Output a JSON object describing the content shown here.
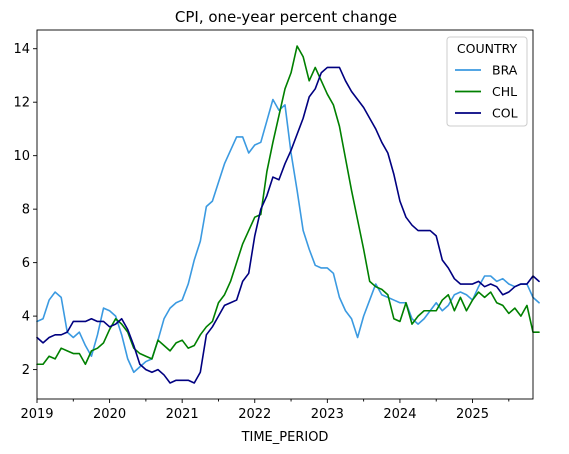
{
  "chart_data": {
    "type": "line",
    "title": "CPI, one-year percent change",
    "xlabel": "TIME_PERIOD",
    "ylabel": "",
    "xlim": [
      "2019-01",
      "2025-11"
    ],
    "ylim": [
      0.9,
      14.7
    ],
    "xticks": [
      {
        "label": "2019",
        "date": "2019-01"
      },
      {
        "label": "2020",
        "date": "2020-01"
      },
      {
        "label": "2021",
        "date": "2021-01"
      },
      {
        "label": "2022",
        "date": "2022-01"
      },
      {
        "label": "2023",
        "date": "2023-01"
      },
      {
        "label": "2024",
        "date": "2024-01"
      },
      {
        "label": "2025",
        "date": "2025-01"
      }
    ],
    "yticks": [
      2,
      4,
      6,
      8,
      10,
      12,
      14
    ],
    "grid": false,
    "legend": {
      "title": "COUNTRY",
      "placement": "top-right"
    },
    "x_start": "2019-01",
    "frequency": "monthly",
    "series": [
      {
        "name": "BRA",
        "color": "#3b9ae1",
        "values": [
          3.8,
          3.9,
          4.6,
          4.9,
          4.7,
          3.4,
          3.2,
          3.4,
          2.9,
          2.5,
          3.3,
          4.3,
          4.2,
          4.0,
          3.3,
          2.4,
          1.9,
          2.1,
          2.3,
          2.4,
          3.1,
          3.9,
          4.3,
          4.5,
          4.6,
          5.2,
          6.1,
          6.8,
          8.1,
          8.3,
          9.0,
          9.7,
          10.2,
          10.7,
          10.7,
          10.1,
          10.4,
          10.5,
          11.3,
          12.1,
          11.7,
          11.9,
          10.1,
          8.7,
          7.2,
          6.5,
          5.9,
          5.8,
          5.8,
          5.6,
          4.7,
          4.2,
          3.9,
          3.2,
          4.0,
          4.6,
          5.2,
          4.8,
          4.7,
          4.6,
          4.5,
          4.5,
          3.9,
          3.7,
          3.9,
          4.2,
          4.5,
          4.2,
          4.4,
          4.8,
          4.9,
          4.8,
          4.6,
          5.1,
          5.5,
          5.5,
          5.3,
          5.4,
          5.2,
          5.1,
          5.2,
          5.2,
          4.7,
          4.5
        ]
      },
      {
        "name": "CHL",
        "color": "#008000",
        "values": [
          2.2,
          2.2,
          2.5,
          2.4,
          2.8,
          2.7,
          2.6,
          2.6,
          2.2,
          2.7,
          2.8,
          3.0,
          3.5,
          3.9,
          3.7,
          3.4,
          2.8,
          2.6,
          2.5,
          2.4,
          3.1,
          2.9,
          2.7,
          3.0,
          3.1,
          2.8,
          2.9,
          3.3,
          3.6,
          3.8,
          4.5,
          4.8,
          5.3,
          6.0,
          6.7,
          7.2,
          7.7,
          7.8,
          9.4,
          10.5,
          11.5,
          12.5,
          13.1,
          14.1,
          13.7,
          12.8,
          13.3,
          12.8,
          12.3,
          11.9,
          11.1,
          9.9,
          8.7,
          7.6,
          6.5,
          5.3,
          5.1,
          5.0,
          4.8,
          3.9,
          3.8,
          4.5,
          3.7,
          4.0,
          4.2,
          4.2,
          4.2,
          4.6,
          4.8,
          4.2,
          4.7,
          4.2,
          4.6,
          4.9,
          4.7,
          4.9,
          4.5,
          4.4,
          4.1,
          4.3,
          4.0,
          4.4,
          3.4,
          3.4
        ]
      },
      {
        "name": "COL",
        "color": "#000080",
        "values": [
          3.2,
          3.0,
          3.2,
          3.3,
          3.3,
          3.4,
          3.8,
          3.8,
          3.8,
          3.9,
          3.8,
          3.8,
          3.6,
          3.7,
          3.9,
          3.5,
          2.9,
          2.2,
          2.0,
          1.9,
          2.0,
          1.8,
          1.5,
          1.6,
          1.6,
          1.6,
          1.5,
          1.9,
          3.3,
          3.6,
          4.0,
          4.4,
          4.5,
          4.6,
          5.3,
          5.6,
          7.0,
          8.0,
          8.5,
          9.2,
          9.1,
          9.7,
          10.2,
          10.8,
          11.4,
          12.2,
          12.5,
          13.1,
          13.3,
          13.3,
          13.3,
          12.8,
          12.4,
          12.1,
          11.8,
          11.4,
          11.0,
          10.5,
          10.1,
          9.3,
          8.3,
          7.7,
          7.4,
          7.2,
          7.2,
          7.2,
          7.0,
          6.1,
          5.8,
          5.4,
          5.2,
          5.2,
          5.2,
          5.3,
          5.1,
          5.2,
          5.1,
          4.8,
          4.9,
          5.1,
          5.2,
          5.2,
          5.5,
          5.3
        ]
      }
    ]
  }
}
